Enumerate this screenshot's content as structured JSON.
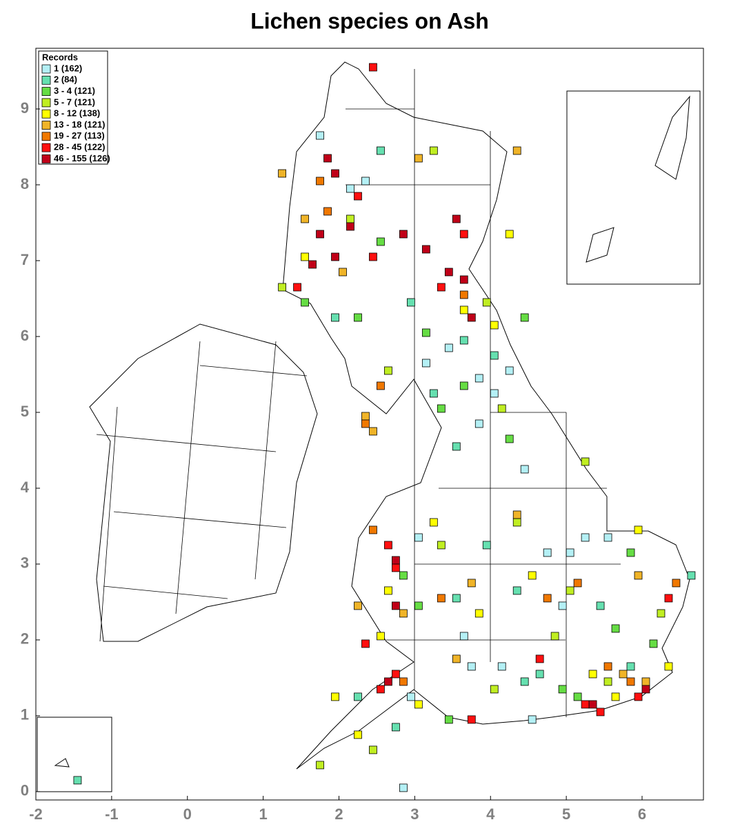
{
  "chart_data": {
    "type": "grid-map",
    "title": "Lichen species on Ash",
    "legend_title": "Records",
    "legend": "upper left",
    "xlim": [
      -2,
      6.81
    ],
    "ylim": [
      -0.11,
      9.8
    ],
    "xticks": [
      -2,
      -1,
      0,
      1,
      2,
      3,
      4,
      5,
      6
    ],
    "yticks": [
      0,
      1,
      2,
      3,
      4,
      5,
      6,
      7,
      8,
      9
    ],
    "cell_size": 0.1,
    "series": [
      {
        "name": "1 (162)",
        "color": "#b4f0f5",
        "x": [
          4.7,
          5.0,
          3.8,
          4.4,
          3.1,
          3.8,
          4.0,
          2.8,
          4.5,
          5.2,
          3.0,
          4.9,
          2.9,
          3.4,
          4.2,
          2.3,
          1.7,
          3.7,
          4.1,
          2.1,
          5.5,
          3.6
        ],
        "y": [
          3.1,
          3.1,
          4.8,
          4.2,
          5.6,
          5.4,
          5.2,
          0.0,
          0.9,
          3.3,
          3.3,
          2.4,
          1.2,
          5.8,
          5.5,
          8.0,
          8.6,
          1.6,
          1.6,
          7.9,
          3.3,
          2.0
        ]
      },
      {
        "name": "2 (84)",
        "color": "#66e0b0",
        "x": [
          4.4,
          4.6,
          3.2,
          3.5,
          4.3,
          2.5,
          5.8,
          3.9,
          2.7,
          2.2,
          3.6,
          4.0,
          1.9,
          6.6,
          3.5,
          5.4,
          2.9,
          -1.5
        ],
        "y": [
          1.4,
          1.5,
          5.2,
          4.5,
          2.6,
          8.4,
          1.6,
          3.2,
          0.8,
          1.2,
          5.9,
          5.7,
          6.2,
          2.8,
          2.5,
          2.4,
          6.4,
          0.1
        ]
      },
      {
        "name": "3 - 4 (121)",
        "color": "#66dd44",
        "x": [
          3.3,
          3.6,
          4.2,
          3.1,
          2.2,
          5.1,
          4.9,
          2.5,
          4.4,
          5.6,
          3.0,
          1.5,
          6.1,
          3.4,
          2.8,
          5.8
        ],
        "y": [
          5.0,
          5.3,
          4.6,
          6.0,
          6.2,
          1.2,
          1.3,
          7.2,
          6.2,
          2.1,
          2.4,
          6.4,
          1.9,
          0.9,
          2.8,
          3.1
        ]
      },
      {
        "name": "5 - 7 (121)",
        "color": "#c0ee22",
        "x": [
          4.1,
          4.3,
          5.2,
          3.9,
          2.1,
          5.5,
          2.4,
          1.7,
          3.3,
          4.8,
          6.2,
          3.2,
          1.2,
          5.0,
          2.6,
          4.0
        ],
        "y": [
          5.0,
          3.5,
          4.3,
          6.4,
          7.5,
          1.4,
          0.5,
          0.3,
          3.2,
          2.0,
          2.3,
          8.4,
          6.6,
          2.6,
          5.5,
          1.3
        ]
      },
      {
        "name": "8 - 12 (138)",
        "color": "#ffff00",
        "x": [
          4.5,
          5.3,
          3.0,
          2.6,
          3.6,
          4.2,
          1.9,
          5.9,
          3.2,
          2.2,
          4.0,
          5.6,
          2.5,
          3.8,
          1.5,
          6.3
        ],
        "y": [
          2.8,
          1.5,
          1.1,
          2.6,
          6.3,
          7.3,
          1.2,
          3.4,
          3.5,
          0.7,
          6.1,
          1.2,
          2.0,
          2.3,
          7.0,
          1.6
        ]
      },
      {
        "name": "13 - 18 (121)",
        "color": "#f0b428",
        "x": [
          2.3,
          2.4,
          3.7,
          5.7,
          1.5,
          2.8,
          4.3,
          3.0,
          5.9,
          2.2,
          3.5,
          6.0,
          2.0,
          4.3,
          1.2
        ],
        "y": [
          4.9,
          4.7,
          2.7,
          1.5,
          7.5,
          2.3,
          3.6,
          8.3,
          2.8,
          2.4,
          1.7,
          1.4,
          6.8,
          8.4,
          8.1
        ]
      },
      {
        "name": "19 - 27 (113)",
        "color": "#f07800",
        "x": [
          2.3,
          5.5,
          5.8,
          3.3,
          1.7,
          6.4,
          2.4,
          2.5,
          3.6,
          4.7,
          2.8,
          1.8,
          5.1
        ],
        "y": [
          4.8,
          1.6,
          1.4,
          2.5,
          8.0,
          2.7,
          3.4,
          5.3,
          6.5,
          2.5,
          1.4,
          7.6,
          2.7
        ]
      },
      {
        "name": "28 - 45 (122)",
        "color": "#ff1010",
        "x": [
          2.7,
          2.5,
          5.2,
          5.4,
          3.3,
          2.6,
          2.2,
          3.6,
          5.9,
          3.7,
          2.3,
          1.4,
          2.4,
          4.6,
          2.7,
          6.3,
          2.4
        ],
        "y": [
          1.5,
          1.3,
          1.1,
          1.0,
          6.6,
          3.2,
          7.8,
          7.3,
          1.2,
          0.9,
          1.9,
          6.6,
          7.0,
          1.7,
          2.9,
          2.5,
          9.5
        ]
      },
      {
        "name": "46 - 155 (126)",
        "color": "#c00018",
        "x": [
          3.6,
          3.4,
          1.7,
          1.9,
          2.8,
          3.5,
          1.8,
          2.6,
          5.3,
          2.7,
          3.7,
          2.1,
          1.6,
          3.1,
          1.9,
          2.7,
          6.0
        ],
        "y": [
          6.7,
          6.8,
          7.3,
          7.0,
          7.3,
          7.5,
          8.3,
          1.4,
          1.1,
          2.4,
          6.2,
          7.4,
          6.9,
          7.1,
          8.1,
          3.0,
          1.3
        ]
      }
    ]
  }
}
